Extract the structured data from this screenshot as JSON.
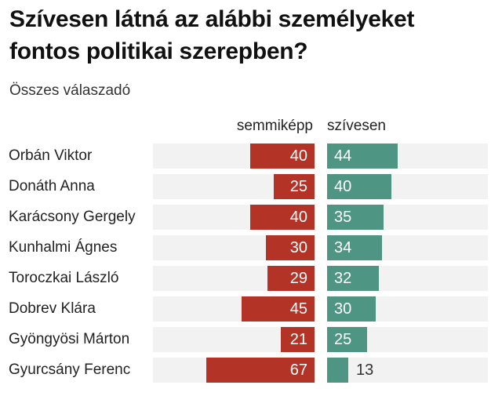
{
  "title": "Szívesen látná az alábbi személyeket fontos politikai szerepben?",
  "subtitle": "Összes válaszadó",
  "columns": {
    "negative_label": "semmiképp",
    "positive_label": "szívesen"
  },
  "colors": {
    "negative_bar": "#b43327",
    "positive_bar": "#4e9683",
    "track": "#f2f2f2",
    "value_text_inside": "#ffffff",
    "value_text_outside": "#333333",
    "title_text": "#111111",
    "subtitle_text": "#333333"
  },
  "rows": [
    {
      "name": "Orbán Viktor",
      "semmikepp": 40,
      "szivesen": 44
    },
    {
      "name": "Donáth Anna",
      "semmikepp": 25,
      "szivesen": 40
    },
    {
      "name": "Karácsony Gergely",
      "semmikepp": 40,
      "szivesen": 35
    },
    {
      "name": "Kunhalmi Ágnes",
      "semmikepp": 30,
      "szivesen": 34
    },
    {
      "name": "Toroczkai László",
      "semmikepp": 29,
      "szivesen": 32
    },
    {
      "name": "Dobrev Klára",
      "semmikepp": 45,
      "szivesen": 30
    },
    {
      "name": "Gyöngyösi Márton",
      "semmikepp": 21,
      "szivesen": 25
    },
    {
      "name": "Gyurcsány Ferenc",
      "semmikepp": 67,
      "szivesen": 13
    }
  ],
  "chart_data": {
    "type": "bar",
    "orientation": "horizontal",
    "layout": "diverging-paired",
    "title": "Szívesen látná az alábbi személyeket fontos politikai szerepben?",
    "subtitle": "Összes válaszadó",
    "categories": [
      "Orbán Viktor",
      "Donáth Anna",
      "Karácsony Gergely",
      "Kunhalmi Ágnes",
      "Toroczkai László",
      "Dobrev Klára",
      "Gyöngyösi Márton",
      "Gyurcsány Ferenc"
    ],
    "series": [
      {
        "name": "semmiképp",
        "values": [
          40,
          25,
          40,
          30,
          29,
          45,
          21,
          67
        ],
        "color": "#b43327",
        "direction": "left"
      },
      {
        "name": "szívesen",
        "values": [
          44,
          40,
          35,
          34,
          32,
          30,
          25,
          13
        ],
        "color": "#4e9683",
        "direction": "right"
      }
    ],
    "xlim": [
      0,
      100
    ],
    "grid": false,
    "legend_position": "column-headers",
    "value_labels": "inside-bar"
  }
}
